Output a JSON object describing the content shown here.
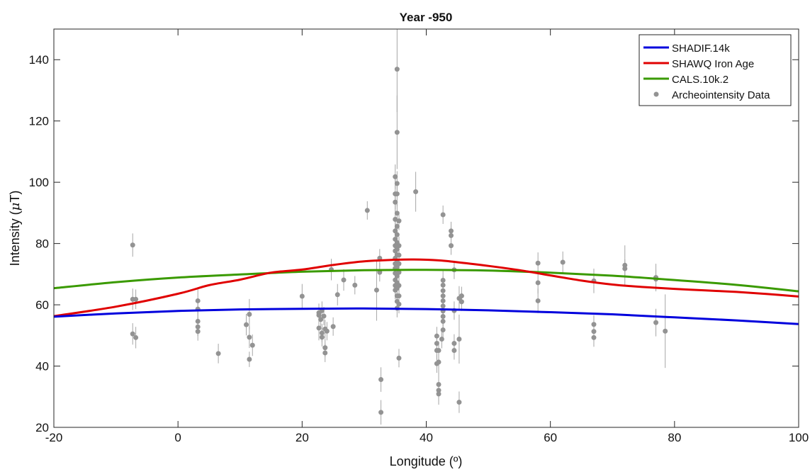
{
  "chart_data": {
    "type": "scatter",
    "title": "Year -950",
    "xlabel": "Longitude (º)",
    "ylabel": "Intensity (μT)",
    "ylabel_prefix": "Intensity (",
    "ylabel_unit_mu": "μ",
    "ylabel_suffix": "T)",
    "xlim": [
      -20,
      100
    ],
    "ylim": [
      20,
      150
    ],
    "xticks": [
      -20,
      0,
      20,
      40,
      60,
      80,
      100
    ],
    "yticks": [
      20,
      40,
      60,
      80,
      100,
      120,
      140
    ],
    "grid": false,
    "legend_position": "top-right",
    "colors": {
      "SHADIF.14k": "#0000dd",
      "SHAWQ Iron Age": "#e00000",
      "CALS.10k.2": "#3a9a00",
      "data": "#939393"
    },
    "series": [
      {
        "name": "SHADIF.14k",
        "kind": "line",
        "x": [
          -20,
          -10,
          0,
          10,
          20,
          30,
          40,
          50,
          60,
          70,
          80,
          90,
          100
        ],
        "y": [
          56.1,
          57.2,
          58.0,
          58.5,
          58.7,
          58.8,
          58.6,
          58.2,
          57.6,
          56.9,
          55.9,
          54.9,
          53.7
        ]
      },
      {
        "name": "SHAWQ Iron Age",
        "kind": "line",
        "x": [
          -20,
          -10,
          0,
          5,
          10,
          15,
          20,
          25,
          30,
          35,
          38,
          42,
          45,
          50,
          55,
          60,
          65,
          70,
          75,
          80,
          85,
          90,
          95,
          100
        ],
        "y": [
          56.3,
          59.4,
          63.6,
          66.4,
          68.2,
          70.5,
          71.5,
          73.0,
          74.2,
          74.7,
          74.8,
          74.5,
          73.9,
          72.7,
          71.3,
          69.6,
          67.9,
          66.6,
          65.8,
          65.2,
          64.7,
          64.2,
          63.5,
          62.7
        ]
      },
      {
        "name": "CALS.10k.2",
        "kind": "line",
        "x": [
          -20,
          -10,
          0,
          10,
          20,
          30,
          40,
          50,
          60,
          70,
          80,
          90,
          100
        ],
        "y": [
          65.4,
          67.4,
          68.9,
          69.9,
          70.8,
          71.3,
          71.4,
          71.2,
          70.5,
          69.5,
          68.1,
          66.5,
          64.4
        ]
      },
      {
        "name": "Archeointensity Data",
        "kind": "points_with_errorbars",
        "points": [
          {
            "x": -7.3,
            "y": 79.5,
            "err": 3.8
          },
          {
            "x": -7.3,
            "y": 61.8,
            "err": 3.5
          },
          {
            "x": -6.8,
            "y": 61.8,
            "err": 3.2
          },
          {
            "x": -7.3,
            "y": 50.5,
            "err": 3.5
          },
          {
            "x": -6.8,
            "y": 49.3,
            "err": 3.5
          },
          {
            "x": 3.2,
            "y": 61.3,
            "err": 4.0
          },
          {
            "x": 3.2,
            "y": 58.6,
            "err": 3.5
          },
          {
            "x": 3.2,
            "y": 54.6,
            "err": 3.0
          },
          {
            "x": 3.2,
            "y": 52.8,
            "err": 3.0
          },
          {
            "x": 3.2,
            "y": 51.3,
            "err": 3.0
          },
          {
            "x": 6.5,
            "y": 44.1,
            "err": 3.2
          },
          {
            "x": 11.0,
            "y": 53.5,
            "err": 3.5
          },
          {
            "x": 11.5,
            "y": 56.9,
            "err": 5.0
          },
          {
            "x": 11.5,
            "y": 49.4,
            "err": 3.5
          },
          {
            "x": 11.5,
            "y": 42.2,
            "err": 2.5
          },
          {
            "x": 12.0,
            "y": 46.8,
            "err": 3.5
          },
          {
            "x": 20.0,
            "y": 62.8,
            "err": 4.0
          },
          {
            "x": 22.7,
            "y": 57.4,
            "err": 3.0
          },
          {
            "x": 22.7,
            "y": 56.6,
            "err": 3.0
          },
          {
            "x": 22.7,
            "y": 52.4,
            "err": 4.0
          },
          {
            "x": 23.0,
            "y": 55.2,
            "err": 3.0
          },
          {
            "x": 23.2,
            "y": 58.1,
            "err": 3.0
          },
          {
            "x": 23.2,
            "y": 50.8,
            "err": 3.0
          },
          {
            "x": 23.2,
            "y": 49.4,
            "err": 3.0
          },
          {
            "x": 23.5,
            "y": 56.3,
            "err": 3.0
          },
          {
            "x": 23.7,
            "y": 52.1,
            "err": 3.0
          },
          {
            "x": 23.7,
            "y": 46.0,
            "err": 3.0
          },
          {
            "x": 23.7,
            "y": 44.3,
            "err": 3.0
          },
          {
            "x": 24.0,
            "y": 51.4,
            "err": 3.0
          },
          {
            "x": 24.7,
            "y": 71.5,
            "err": 3.5
          },
          {
            "x": 25.0,
            "y": 52.9,
            "err": 3.0
          },
          {
            "x": 25.7,
            "y": 63.3,
            "err": 3.5
          },
          {
            "x": 26.7,
            "y": 68.1,
            "err": 3.5
          },
          {
            "x": 28.5,
            "y": 66.4,
            "err": 3.0
          },
          {
            "x": 30.5,
            "y": 90.8,
            "err": 3.0
          },
          {
            "x": 32.0,
            "y": 64.8,
            "err": 10.0
          },
          {
            "x": 32.5,
            "y": 75.2,
            "err": 3.0
          },
          {
            "x": 32.5,
            "y": 70.6,
            "err": 3.0
          },
          {
            "x": 32.7,
            "y": 35.6,
            "err": 4.0
          },
          {
            "x": 32.7,
            "y": 24.9,
            "err": 4.0
          },
          {
            "x": 35.0,
            "y": 101.8,
            "err": 4.0
          },
          {
            "x": 35.0,
            "y": 96.2,
            "err": 5.0
          },
          {
            "x": 35.0,
            "y": 93.5,
            "err": 3.0
          },
          {
            "x": 35.0,
            "y": 87.9,
            "err": 3.0
          },
          {
            "x": 35.0,
            "y": 84.1,
            "err": 3.0
          },
          {
            "x": 35.0,
            "y": 81.4,
            "err": 3.0
          },
          {
            "x": 35.0,
            "y": 79.3,
            "err": 3.0
          },
          {
            "x": 35.0,
            "y": 77.6,
            "err": 3.0
          },
          {
            "x": 35.0,
            "y": 75.2,
            "err": 3.0
          },
          {
            "x": 35.0,
            "y": 73.4,
            "err": 3.0
          },
          {
            "x": 35.0,
            "y": 71.9,
            "err": 3.0
          },
          {
            "x": 35.0,
            "y": 70.3,
            "err": 3.0
          },
          {
            "x": 35.0,
            "y": 68.1,
            "err": 3.0
          },
          {
            "x": 35.0,
            "y": 66.3,
            "err": 3.0
          },
          {
            "x": 35.0,
            "y": 64.8,
            "err": 3.0
          },
          {
            "x": 35.3,
            "y": 136.9,
            "err": 14.0
          },
          {
            "x": 35.3,
            "y": 116.3,
            "err": 12.0
          },
          {
            "x": 35.3,
            "y": 99.6,
            "err": 4.0
          },
          {
            "x": 35.3,
            "y": 96.2,
            "err": 4.0
          },
          {
            "x": 35.3,
            "y": 89.9,
            "err": 3.0
          },
          {
            "x": 35.3,
            "y": 85.6,
            "err": 3.0
          },
          {
            "x": 35.3,
            "y": 82.9,
            "err": 3.0
          },
          {
            "x": 35.3,
            "y": 80.3,
            "err": 3.0
          },
          {
            "x": 35.3,
            "y": 78.1,
            "err": 3.0
          },
          {
            "x": 35.3,
            "y": 76.3,
            "err": 3.0
          },
          {
            "x": 35.3,
            "y": 74.1,
            "err": 3.0
          },
          {
            "x": 35.3,
            "y": 72.3,
            "err": 3.0
          },
          {
            "x": 35.3,
            "y": 69.4,
            "err": 3.0
          },
          {
            "x": 35.3,
            "y": 67.2,
            "err": 3.0
          },
          {
            "x": 35.3,
            "y": 65.4,
            "err": 3.0
          },
          {
            "x": 35.3,
            "y": 62.9,
            "err": 3.0
          },
          {
            "x": 35.3,
            "y": 61.1,
            "err": 3.0
          },
          {
            "x": 35.3,
            "y": 58.9,
            "err": 3.0
          },
          {
            "x": 35.6,
            "y": 87.4,
            "err": 3.0
          },
          {
            "x": 35.6,
            "y": 79.3,
            "err": 3.0
          },
          {
            "x": 35.6,
            "y": 76.2,
            "err": 3.0
          },
          {
            "x": 35.6,
            "y": 73.4,
            "err": 3.0
          },
          {
            "x": 35.6,
            "y": 70.6,
            "err": 3.0
          },
          {
            "x": 35.6,
            "y": 66.3,
            "err": 3.0
          },
          {
            "x": 35.6,
            "y": 62.9,
            "err": 3.0
          },
          {
            "x": 35.6,
            "y": 60.2,
            "err": 3.0
          },
          {
            "x": 35.6,
            "y": 42.6,
            "err": 3.0
          },
          {
            "x": 38.3,
            "y": 96.9,
            "err": 6.5
          },
          {
            "x": 41.7,
            "y": 49.8,
            "err": 3.0
          },
          {
            "x": 41.7,
            "y": 47.4,
            "err": 3.0
          },
          {
            "x": 41.7,
            "y": 45.1,
            "err": 3.0
          },
          {
            "x": 41.7,
            "y": 40.8,
            "err": 3.0
          },
          {
            "x": 42.0,
            "y": 45.1,
            "err": 3.0
          },
          {
            "x": 42.0,
            "y": 41.3,
            "err": 4.0
          },
          {
            "x": 42.0,
            "y": 34.0,
            "err": 3.5
          },
          {
            "x": 42.0,
            "y": 32.1,
            "err": 3.5
          },
          {
            "x": 42.0,
            "y": 30.9,
            "err": 3.5
          },
          {
            "x": 42.5,
            "y": 48.8,
            "err": 3.0
          },
          {
            "x": 42.7,
            "y": 89.4,
            "err": 3.0
          },
          {
            "x": 42.7,
            "y": 68.0,
            "err": 3.0
          },
          {
            "x": 42.7,
            "y": 66.4,
            "err": 3.0
          },
          {
            "x": 42.7,
            "y": 64.6,
            "err": 3.0
          },
          {
            "x": 42.7,
            "y": 62.9,
            "err": 3.0
          },
          {
            "x": 42.7,
            "y": 61.3,
            "err": 3.0
          },
          {
            "x": 42.7,
            "y": 59.6,
            "err": 3.0
          },
          {
            "x": 42.7,
            "y": 58.0,
            "err": 3.0
          },
          {
            "x": 42.7,
            "y": 56.2,
            "err": 3.0
          },
          {
            "x": 42.7,
            "y": 54.6,
            "err": 3.0
          },
          {
            "x": 42.7,
            "y": 51.8,
            "err": 3.0
          },
          {
            "x": 44.0,
            "y": 84.1,
            "err": 3.0
          },
          {
            "x": 44.0,
            "y": 82.6,
            "err": 3.0
          },
          {
            "x": 44.0,
            "y": 79.3,
            "err": 3.0
          },
          {
            "x": 44.5,
            "y": 71.4,
            "err": 3.0
          },
          {
            "x": 44.5,
            "y": 58.1,
            "err": 3.0
          },
          {
            "x": 44.5,
            "y": 47.4,
            "err": 3.0
          },
          {
            "x": 44.5,
            "y": 45.1,
            "err": 3.0
          },
          {
            "x": 45.3,
            "y": 62.1,
            "err": 4.0
          },
          {
            "x": 45.3,
            "y": 48.8,
            "err": 8.0
          },
          {
            "x": 45.3,
            "y": 28.2,
            "err": 3.5
          },
          {
            "x": 45.7,
            "y": 62.9,
            "err": 3.0
          },
          {
            "x": 45.7,
            "y": 61.0,
            "err": 3.0
          },
          {
            "x": 58.0,
            "y": 73.6,
            "err": 3.5
          },
          {
            "x": 58.0,
            "y": 67.2,
            "err": 3.5
          },
          {
            "x": 58.0,
            "y": 61.3,
            "err": 4.0
          },
          {
            "x": 62.0,
            "y": 73.9,
            "err": 3.5
          },
          {
            "x": 67.0,
            "y": 67.8,
            "err": 4.0
          },
          {
            "x": 67.0,
            "y": 53.6,
            "err": 3.0
          },
          {
            "x": 67.0,
            "y": 51.3,
            "err": 3.0
          },
          {
            "x": 67.0,
            "y": 49.3,
            "err": 3.0
          },
          {
            "x": 72.0,
            "y": 72.9,
            "err": 6.5
          },
          {
            "x": 72.0,
            "y": 71.8,
            "err": 3.0
          },
          {
            "x": 77.0,
            "y": 68.9,
            "err": 4.5
          },
          {
            "x": 77.0,
            "y": 68.4,
            "err": 3.0
          },
          {
            "x": 77.0,
            "y": 54.2,
            "err": 4.5
          },
          {
            "x": 78.5,
            "y": 51.4,
            "err": 12.0
          }
        ]
      }
    ]
  }
}
